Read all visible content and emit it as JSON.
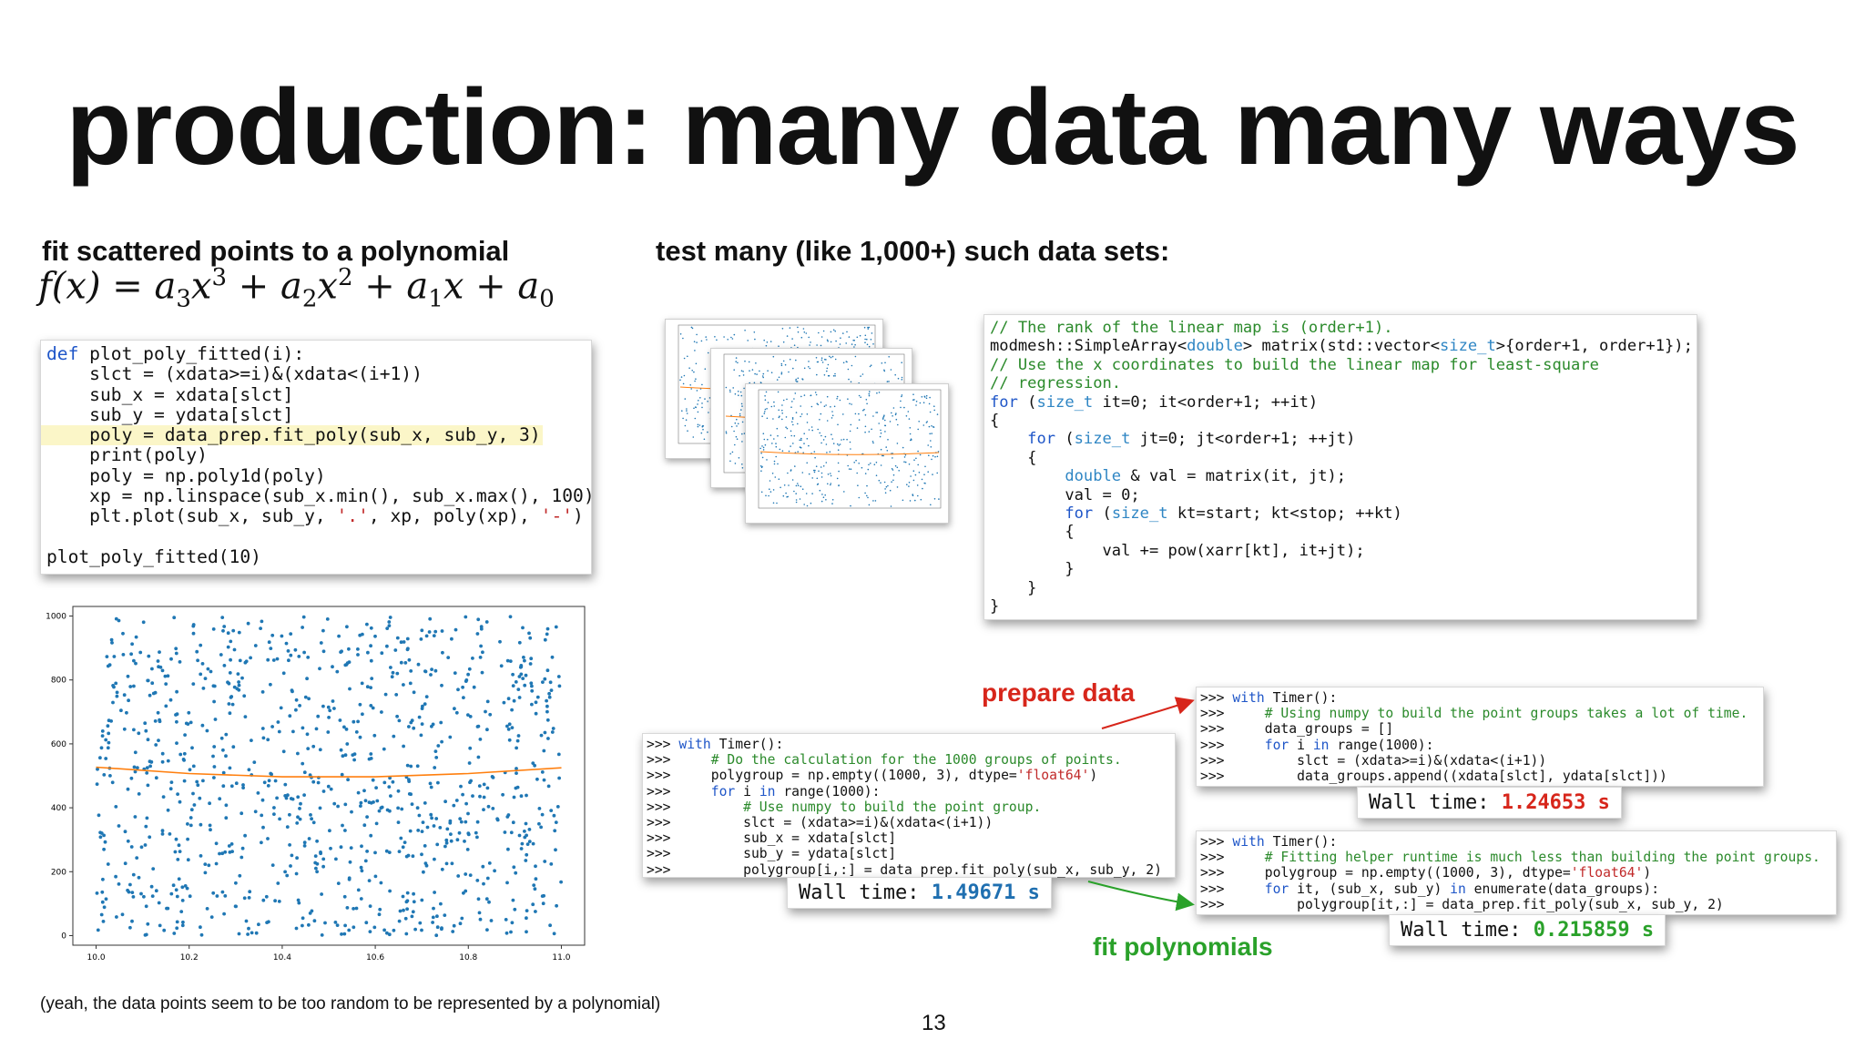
{
  "slide": {
    "title": "production: many data many ways",
    "left_heading": "fit scattered points to a polynomial",
    "right_heading": "test many (like 1,000+) such data sets:",
    "formula": "f(x) = a3x3 + a2x2 + a1x + a0",
    "caption": "(yeah, the data points seem to be too random to be represented by a polynomial)",
    "page_number": "13"
  },
  "labels": {
    "prepare_data": "prepare data",
    "fit_polynomials": "fit polynomials"
  },
  "python_code": {
    "lines": [
      "def plot_poly_fitted(i):",
      "    slct = (xdata>=i)&(xdata<(i+1))",
      "    sub_x = xdata[slct]",
      "    sub_y = ydata[slct]",
      "    poly = data_prep.fit_poly(sub_x, sub_y, 3)",
      "    print(poly)",
      "    poly = np.poly1d(poly)",
      "    xp = np.linspace(sub_x.min(), sub_x.max(), 100)",
      "    plt.plot(sub_x, sub_y, '.', xp, poly(xp), '-')",
      "",
      "plot_poly_fitted(10)"
    ],
    "highlighted_line": 4
  },
  "cpp_code": {
    "lines": [
      "// The rank of the linear map is (order+1).",
      "modmesh::SimpleArray<double> matrix(std::vector<size_t>{order+1, order+1});",
      "// Use the x coordinates to build the linear map for least-square",
      "// regression.",
      "for (size_t it=0; it<order+1; ++it)",
      "{",
      "    for (size_t jt=0; jt<order+1; ++jt)",
      "    {",
      "        double & val = matrix(it, jt);",
      "        val = 0;",
      "        for (size_t kt=start; kt<stop; ++kt)",
      "        {",
      "            val += pow(xarr[kt], it+jt);",
      "        }",
      "    }",
      "}"
    ]
  },
  "shell_combined": {
    "lines": [
      ">>> with Timer():",
      ">>>     # Do the calculation for the 1000 groups of points.",
      ">>>     polygroup = np.empty((1000, 3), dtype='float64')",
      ">>>     for i in range(1000):",
      ">>>         # Use numpy to build the point group.",
      ">>>         slct = (xdata>=i)&(xdata<(i+1))",
      ">>>         sub_x = xdata[slct]",
      ">>>         sub_y = ydata[slct]",
      ">>>         polygroup[i,:] = data_prep.fit_poly(sub_x, sub_y, 2)"
    ],
    "wall_label": "Wall time: ",
    "wall_value": "1.49671 s",
    "wall_color": "#1f6fb0"
  },
  "shell_prepare": {
    "lines": [
      ">>> with Timer():",
      ">>>     # Using numpy to build the point groups takes a lot of time.",
      ">>>     data_groups = []",
      ">>>     for i in range(1000):",
      ">>>         slct = (xdata>=i)&(xdata<(i+1))",
      ">>>         data_groups.append((xdata[slct], ydata[slct]))"
    ],
    "wall_label": "Wall time: ",
    "wall_value": "1.24653 s",
    "wall_color": "#d7261b"
  },
  "shell_fit": {
    "lines": [
      ">>> with Timer():",
      ">>>     # Fitting helper runtime is much less than building the point groups.",
      ">>>     polygroup = np.empty((1000, 3), dtype='float64')",
      ">>>     for it, (sub_x, sub_y) in enumerate(data_groups):",
      ">>>         polygroup[it,:] = data_prep.fit_poly(sub_x, sub_y, 2)"
    ],
    "wall_label": "Wall time: ",
    "wall_value": "0.215859 s",
    "wall_color": "#2aa12a"
  },
  "chart_data": {
    "type": "scatter",
    "title": "",
    "xlabel": "",
    "ylabel": "",
    "xlim": [
      9.95,
      11.05
    ],
    "ylim": [
      -30,
      1030
    ],
    "x_ticks": [
      "10.0",
      "10.2",
      "10.4",
      "10.6",
      "10.8",
      "11.0"
    ],
    "y_ticks": [
      "0",
      "200",
      "400",
      "600",
      "800",
      "1000"
    ],
    "series": [
      {
        "kind": "points",
        "color": "#1f77b4",
        "count_approx": 1000,
        "description_values": "random uniform y in [0,1000], x in [10,11]"
      },
      {
        "kind": "fitted-curve",
        "color": "#ff7f0e",
        "x": [
          10.0,
          10.2,
          10.4,
          10.6,
          10.8,
          11.0
        ],
        "y": [
          527,
          507,
          497,
          497,
          507,
          525
        ]
      }
    ],
    "grid": false
  }
}
